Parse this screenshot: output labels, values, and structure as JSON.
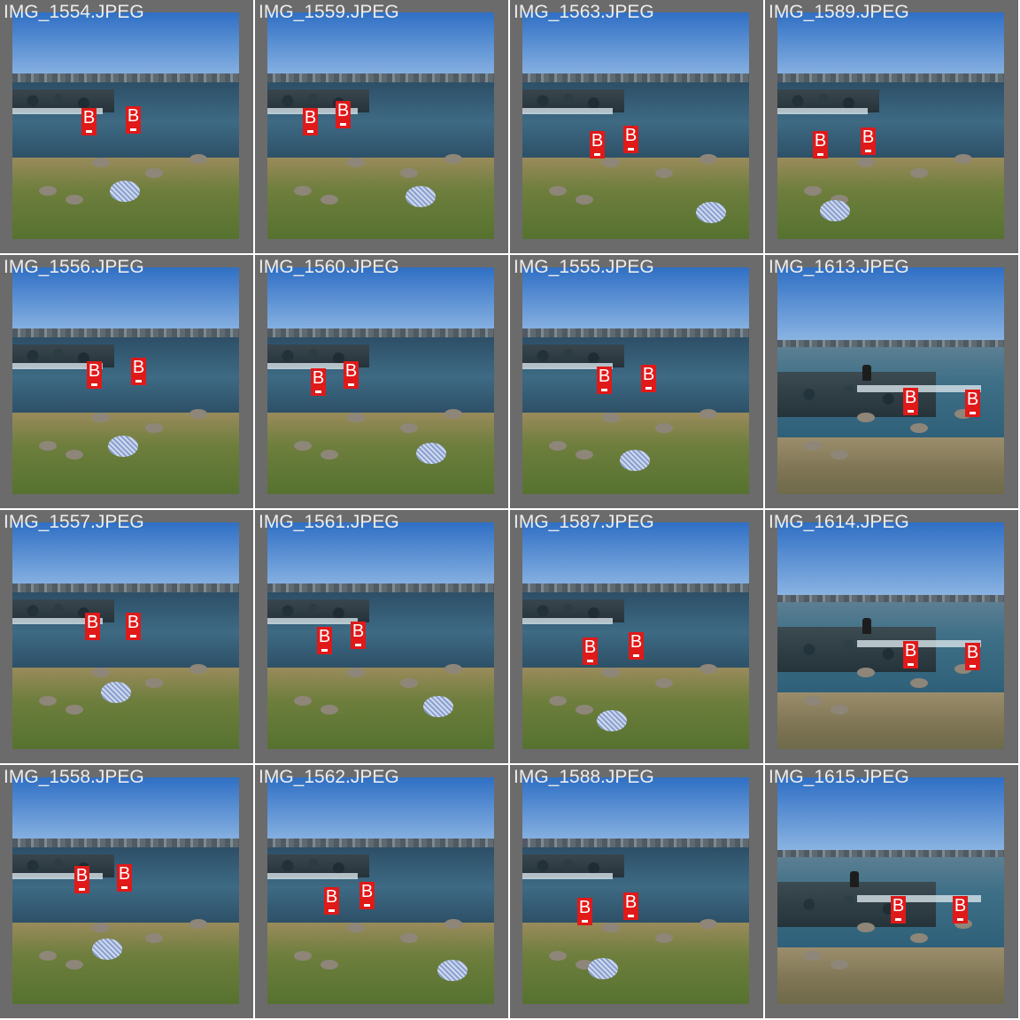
{
  "grid": {
    "columns": 4,
    "rows": 4,
    "background": "#6b6b6b",
    "label_color": "#ececec",
    "marker_color": "#e01919"
  },
  "marker_letter": "B",
  "items": [
    {
      "filename": "IMG_1554.JPEG",
      "scene": "shore"
    },
    {
      "filename": "IMG_1559.JPEG",
      "scene": "shore"
    },
    {
      "filename": "IMG_1563.JPEG",
      "scene": "shore"
    },
    {
      "filename": "IMG_1589.JPEG",
      "scene": "shore"
    },
    {
      "filename": "IMG_1556.JPEG",
      "scene": "shore"
    },
    {
      "filename": "IMG_1560.JPEG",
      "scene": "shore"
    },
    {
      "filename": "IMG_1555.JPEG",
      "scene": "shore"
    },
    {
      "filename": "IMG_1613.JPEG",
      "scene": "rocks-with-person"
    },
    {
      "filename": "IMG_1557.JPEG",
      "scene": "shore"
    },
    {
      "filename": "IMG_1561.JPEG",
      "scene": "shore"
    },
    {
      "filename": "IMG_1587.JPEG",
      "scene": "shore"
    },
    {
      "filename": "IMG_1614.JPEG",
      "scene": "rocks-with-person"
    },
    {
      "filename": "IMG_1558.JPEG",
      "scene": "shore"
    },
    {
      "filename": "IMG_1562.JPEG",
      "scene": "shore"
    },
    {
      "filename": "IMG_1588.JPEG",
      "scene": "shore"
    },
    {
      "filename": "IMG_1615.JPEG",
      "scene": "rocks-with-person"
    }
  ]
}
